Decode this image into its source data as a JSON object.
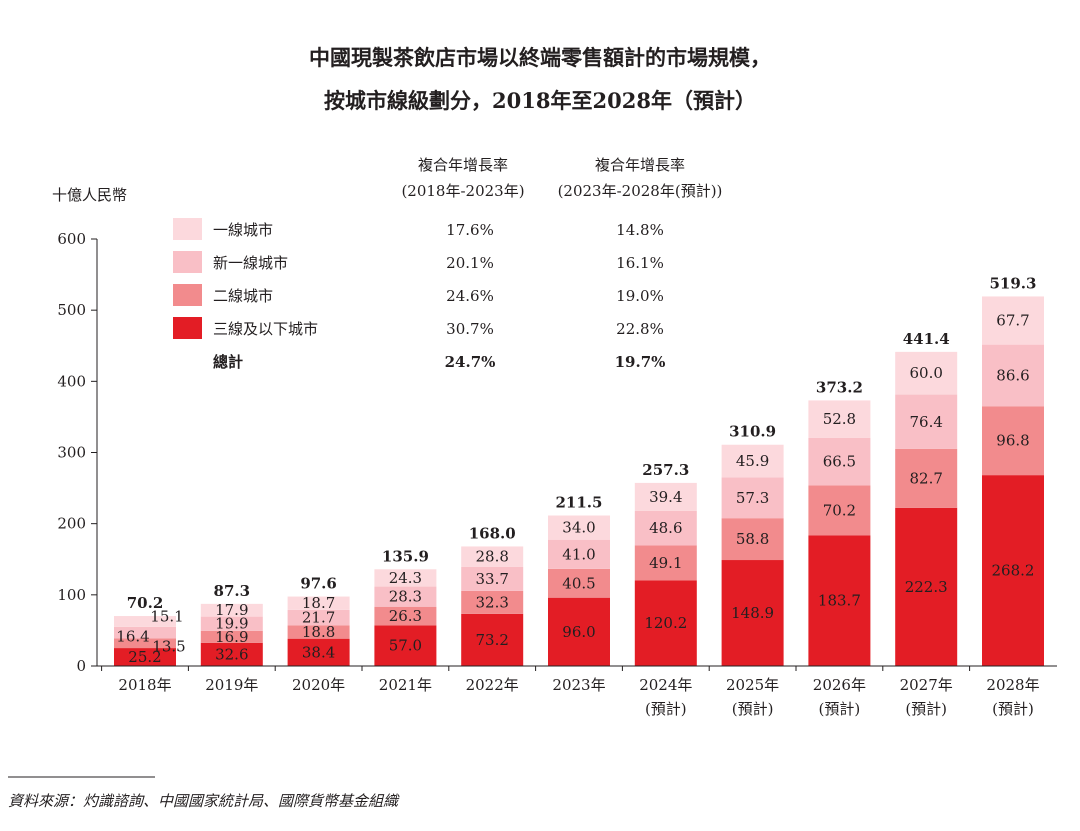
{
  "chart_data": {
    "type": "bar",
    "stacked": true,
    "title": [
      "中國現製茶飲店市場以終端零售額計的市場規模，",
      "按城市線級劃分，2018年至2028年（預計）"
    ],
    "ylabel": "十億人民幣",
    "ylim": [
      0,
      600
    ],
    "yticks": [
      0,
      100,
      200,
      300,
      400,
      500,
      600
    ],
    "categories": [
      [
        "2018年"
      ],
      [
        "2019年"
      ],
      [
        "2020年"
      ],
      [
        "2021年"
      ],
      [
        "2022年"
      ],
      [
        "2023年"
      ],
      [
        "2024年",
        "(預計)"
      ],
      [
        "2025年",
        "(預計)"
      ],
      [
        "2026年",
        "(預計)"
      ],
      [
        "2027年",
        "(預計)"
      ],
      [
        "2028年",
        "(預計)"
      ]
    ],
    "series": [
      {
        "name": "三線及以下城市",
        "color": "#e31d25",
        "values": [
          25.2,
          32.6,
          38.4,
          57.0,
          73.2,
          96.0,
          120.2,
          148.9,
          183.7,
          222.3,
          268.2
        ],
        "cagr1": "30.7%",
        "cagr2": "22.8%"
      },
      {
        "name": "二線城市",
        "color": "#f28b8d",
        "values": [
          13.5,
          16.9,
          18.8,
          26.3,
          32.3,
          40.5,
          49.1,
          58.8,
          70.2,
          82.7,
          96.8
        ],
        "cagr1": "24.6%",
        "cagr2": "19.0%"
      },
      {
        "name": "新一線城市",
        "color": "#f9bfc6",
        "values": [
          16.4,
          19.9,
          21.7,
          28.3,
          33.7,
          41.0,
          48.6,
          57.3,
          66.5,
          76.4,
          86.6
        ],
        "cagr1": "20.1%",
        "cagr2": "16.1%"
      },
      {
        "name": "一線城市",
        "color": "#fcd9dd",
        "values": [
          15.1,
          17.9,
          18.7,
          24.3,
          28.8,
          34.0,
          39.4,
          45.9,
          52.8,
          60.0,
          67.7
        ],
        "cagr1": "17.6%",
        "cagr2": "14.8%"
      }
    ],
    "totals": [
      "70.2",
      "87.3",
      "97.6",
      "135.9",
      "168.0",
      "211.5",
      "257.3",
      "310.9",
      "373.2",
      "441.4",
      "519.3"
    ],
    "legend_order": [
      "一線城市",
      "新一線城市",
      "二線城市",
      "三線及以下城市"
    ],
    "total_row": {
      "name": "總計",
      "cagr1": "24.7%",
      "cagr2": "19.7%"
    },
    "cagr_headers": [
      [
        "複合年增長率",
        "(2018年-2023年)"
      ],
      [
        "複合年增長率",
        "(2023年-2028年(預計))"
      ]
    ],
    "source": "資料來源：灼識諮詢、中國國家統計局、國際貨幣基金組織"
  }
}
